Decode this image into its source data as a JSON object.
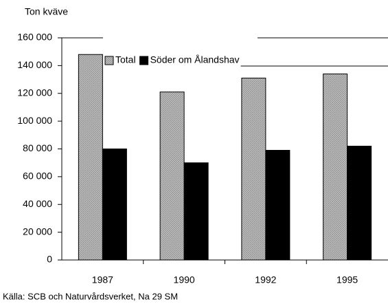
{
  "chart_data": {
    "type": "bar",
    "y_axis_title": "Ton kväve",
    "source": "Källa: SCB och Naturvårdsverket, Na 29 SM",
    "categories": [
      "1987",
      "1990",
      "1992",
      "1995"
    ],
    "series": [
      {
        "name": "Total",
        "color": "#b4b4b4",
        "values": [
          148000,
          121000,
          131000,
          134000
        ]
      },
      {
        "name": "Söder om Ålandshav",
        "color": "#000000",
        "values": [
          80000,
          70000,
          79000,
          82000
        ]
      }
    ],
    "ylim": [
      0,
      160000
    ],
    "yticks": [
      0,
      {
        "value": 20000,
        "label": "20 000"
      },
      {
        "value": 40000,
        "label": "40 000"
      },
      {
        "value": 60000,
        "label": "60 000"
      },
      {
        "value": 80000,
        "label": "80 000"
      },
      {
        "value": 100000,
        "label": "100 000"
      },
      {
        "value": 120000,
        "label": "120 000"
      },
      {
        "value": 140000,
        "label": "140 000"
      },
      {
        "value": 160000,
        "label": "160 000"
      }
    ],
    "grid": false
  }
}
